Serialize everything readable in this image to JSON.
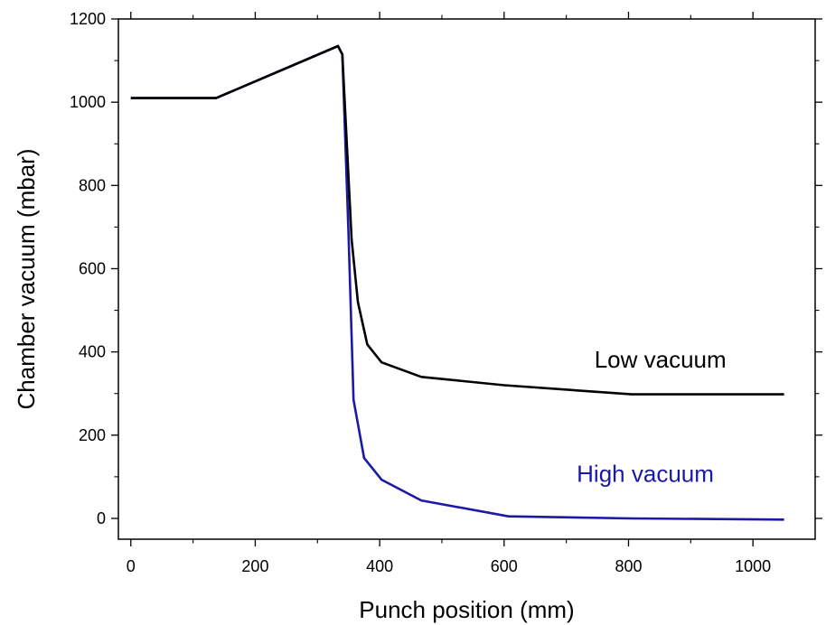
{
  "chart_data": {
    "type": "line",
    "title": "",
    "xlabel": "Punch position (mm)",
    "ylabel": "Chamber vacuum (mbar)",
    "xlim": [
      -20,
      1100
    ],
    "ylim": [
      -50,
      1200
    ],
    "xticks": [
      0,
      200,
      400,
      600,
      800,
      1000
    ],
    "yticks": [
      0,
      200,
      400,
      600,
      800,
      1000,
      1200
    ],
    "xtick_labels": [
      "0",
      "200",
      "400",
      "600",
      "800",
      "1000"
    ],
    "ytick_labels": [
      "0",
      "200",
      "400",
      "600",
      "800",
      "1000",
      "1200"
    ],
    "grid": false,
    "series": [
      {
        "name": "Low vacuum",
        "color": "#000000",
        "x": [
          0,
          137,
          333,
          340,
          355,
          365,
          380,
          403,
          467,
          600,
          805,
          1050
        ],
        "y": [
          1010,
          1010,
          1135,
          1115,
          670,
          520,
          418,
          375,
          340,
          320,
          298,
          298
        ]
      },
      {
        "name": "High vacuum",
        "color": "#1a1aa6",
        "x": [
          0,
          137,
          333,
          340,
          350,
          358,
          375,
          403,
          467,
          607,
          805,
          1050
        ],
        "y": [
          1010,
          1010,
          1135,
          1115,
          680,
          285,
          145,
          93,
          43,
          5,
          0,
          -3
        ]
      }
    ],
    "annotations": [
      {
        "text": "Low vacuum",
        "x": 870,
        "y": 362,
        "color": "#000000"
      },
      {
        "text": "High vacuum",
        "x": 850,
        "y": 88,
        "color": "#1a1aa6"
      }
    ]
  }
}
